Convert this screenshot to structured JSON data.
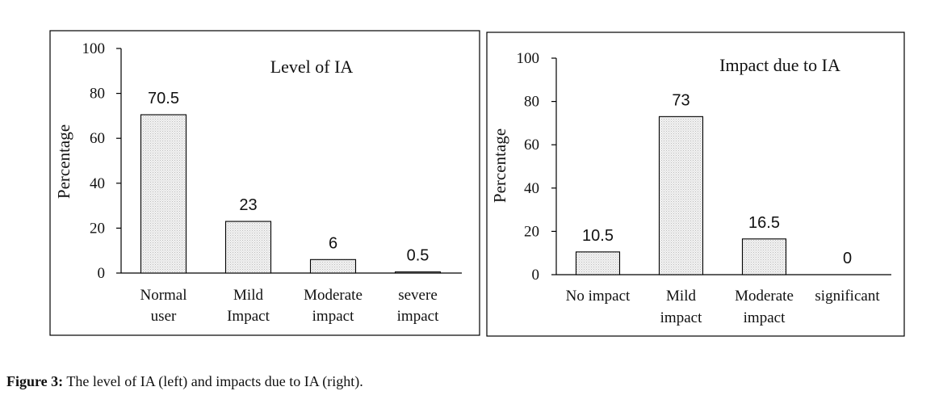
{
  "chart_data": [
    {
      "type": "bar",
      "title": "Level of IA",
      "ylabel": "Percentage",
      "ylim": [
        0,
        100
      ],
      "yticks": [
        0,
        20,
        40,
        60,
        80,
        100
      ],
      "categories": [
        [
          "Normal",
          "user"
        ],
        [
          "Mild",
          "Impact"
        ],
        [
          "Moderate",
          "impact"
        ],
        [
          "severe",
          "impact"
        ]
      ],
      "values": [
        70.5,
        23,
        6,
        0.5
      ],
      "data_labels": [
        "70.5",
        "23",
        "6",
        "0.5"
      ],
      "grid": false
    },
    {
      "type": "bar",
      "title": "Impact due to IA",
      "ylabel": "Percentage",
      "ylim": [
        0,
        100
      ],
      "yticks": [
        0,
        20,
        40,
        60,
        80,
        100
      ],
      "categories": [
        [
          "No impact"
        ],
        [
          "Mild",
          "impact"
        ],
        [
          "Moderate",
          "impact"
        ],
        [
          "significant"
        ]
      ],
      "values": [
        10.5,
        73,
        16.5,
        0
      ],
      "data_labels": [
        "10.5",
        "73",
        "16.5",
        "0"
      ],
      "grid": false
    }
  ],
  "caption": {
    "label": "Figure 3:",
    "text": " The level of IA (left) and impacts due to IA (right)."
  },
  "colors": {
    "bar_fill": "#ebebeb",
    "bar_stroke": "#000000",
    "frame": "#000000"
  }
}
